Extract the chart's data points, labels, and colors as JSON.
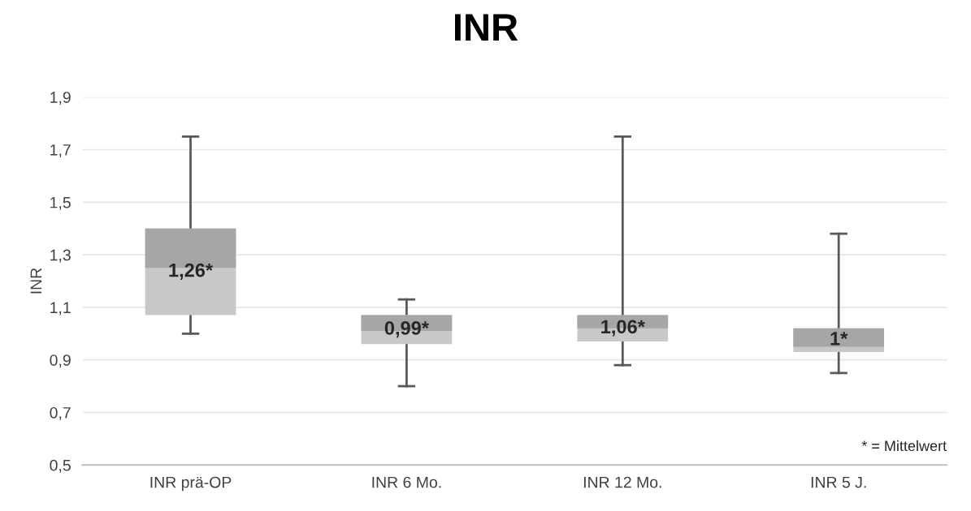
{
  "chart_data": {
    "type": "box",
    "title": "INR",
    "ylabel": "INR",
    "categories": [
      "INR prä-OP",
      "INR 6 Mo.",
      "INR 12 Mo.",
      "INR 5 J."
    ],
    "series": [
      {
        "color": "#c8c8c8",
        "boxes": [
          {
            "low": 1.0,
            "q1": 1.07,
            "median": 1.25,
            "q3": 1.4,
            "high": 1.75
          },
          {
            "low": 0.8,
            "q1": 0.96,
            "median": 1.01,
            "q3": 1.07,
            "high": 1.13
          },
          {
            "low": 0.88,
            "q1": 0.97,
            "median": 1.02,
            "q3": 1.07,
            "high": 1.75
          },
          {
            "low": 0.85,
            "q1": 0.93,
            "median": 0.95,
            "q3": 1.02,
            "high": 1.38
          }
        ]
      }
    ],
    "colors": [
      "#a6a6a6",
      "#a6a6a6",
      "#a6a6a6",
      "#a6a6a6"
    ],
    "ylim": [
      0.5,
      1.9
    ],
    "yticks": [
      {
        "value": 0.5,
        "label": "0,5"
      },
      {
        "value": 0.7,
        "label": "0,7"
      },
      {
        "value": 0.9,
        "label": "0,9"
      },
      {
        "value": 1.1,
        "label": "1,1"
      },
      {
        "value": 1.3,
        "label": "1,3"
      },
      {
        "value": 1.5,
        "label": "1,5"
      },
      {
        "value": 1.7,
        "label": "1,7"
      },
      {
        "value": 1.9,
        "label": "1,9"
      }
    ],
    "grid": "y",
    "annotations": [
      "1,26*",
      "0,99*",
      "1,06*",
      "1*",
      "* = Mittelwert"
    ]
  }
}
